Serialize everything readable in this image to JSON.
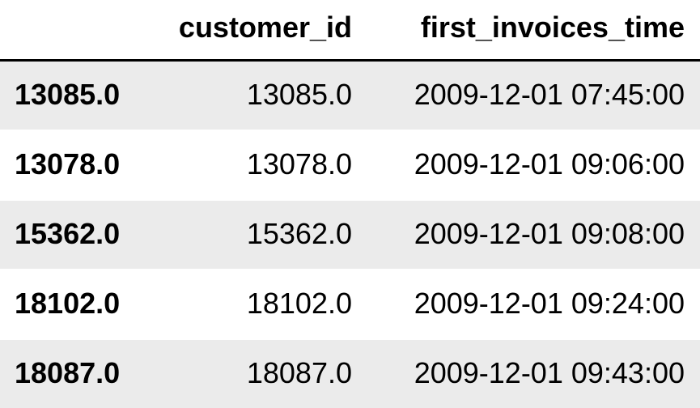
{
  "table": {
    "columns": [
      "customer_id",
      "first_invoices_time"
    ],
    "rows": [
      {
        "index": "13085.0",
        "customer_id": "13085.0",
        "first_invoices_time": "2009-12-01 07:45:00"
      },
      {
        "index": "13078.0",
        "customer_id": "13078.0",
        "first_invoices_time": "2009-12-01 09:06:00"
      },
      {
        "index": "15362.0",
        "customer_id": "15362.0",
        "first_invoices_time": "2009-12-01 09:08:00"
      },
      {
        "index": "18102.0",
        "customer_id": "18102.0",
        "first_invoices_time": "2009-12-01 09:24:00"
      },
      {
        "index": "18087.0",
        "customer_id": "18087.0",
        "first_invoices_time": "2009-12-01 09:43:00"
      }
    ]
  },
  "colors": {
    "stripe": "#ebebeb",
    "background": "#ffffff",
    "header_rule": "#000000"
  }
}
